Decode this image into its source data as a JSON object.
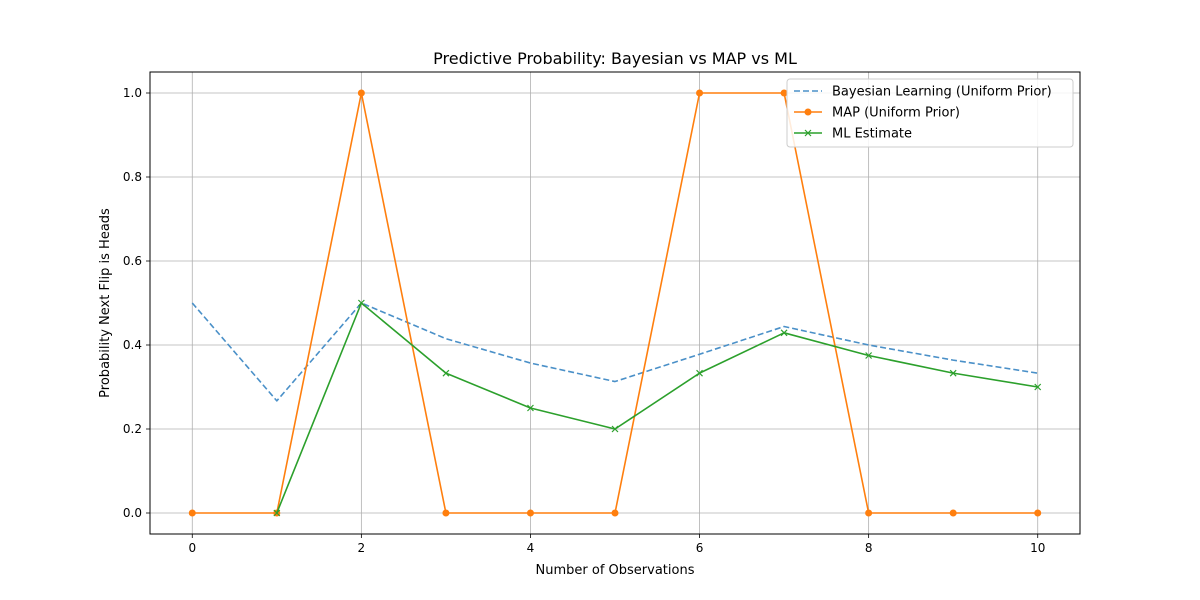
{
  "chart_data": {
    "type": "line",
    "title": "Predictive Probability: Bayesian vs MAP vs ML",
    "xlabel": "Number of Observations",
    "ylabel": "Probability Next Flip is Heads",
    "x": [
      0,
      1,
      2,
      3,
      4,
      5,
      6,
      7,
      8,
      9,
      10
    ],
    "xlim": [
      -0.5,
      10.5
    ],
    "ylim": [
      -0.05,
      1.05
    ],
    "xticks": [
      0,
      2,
      4,
      6,
      8,
      10
    ],
    "yticks": [
      0.0,
      0.2,
      0.4,
      0.6,
      0.8,
      1.0
    ],
    "xtick_labels": [
      "0",
      "2",
      "4",
      "6",
      "8",
      "10"
    ],
    "ytick_labels": [
      "0.0",
      "0.2",
      "0.4",
      "0.6",
      "0.8",
      "1.0"
    ],
    "grid": true,
    "legend_position": "top-right",
    "series": [
      {
        "name": "Bayesian Learning (Uniform Prior)",
        "x": [
          0,
          1,
          2,
          3,
          4,
          5,
          6,
          7,
          8,
          9,
          10
        ],
        "values": [
          0.5,
          0.267,
          0.5,
          0.415,
          0.357,
          0.313,
          0.378,
          0.444,
          0.4,
          0.364,
          0.333
        ],
        "color": "#4a90c8",
        "style": "dashed",
        "marker": "none"
      },
      {
        "name": "MAP (Uniform Prior)",
        "x": [
          0,
          1,
          2,
          3,
          4,
          5,
          6,
          7,
          8,
          9,
          10
        ],
        "values": [
          0,
          0,
          1,
          0,
          0,
          0,
          1,
          1,
          0,
          0,
          0
        ],
        "color": "#ff7f0e",
        "style": "solid",
        "marker": "circle"
      },
      {
        "name": "ML Estimate",
        "x": [
          1,
          2,
          3,
          4,
          5,
          6,
          7,
          8,
          9,
          10
        ],
        "values": [
          0,
          0.5,
          0.333,
          0.25,
          0.2,
          0.333,
          0.429,
          0.375,
          0.333,
          0.3
        ],
        "color": "#2ca02c",
        "style": "solid",
        "marker": "x"
      }
    ]
  }
}
